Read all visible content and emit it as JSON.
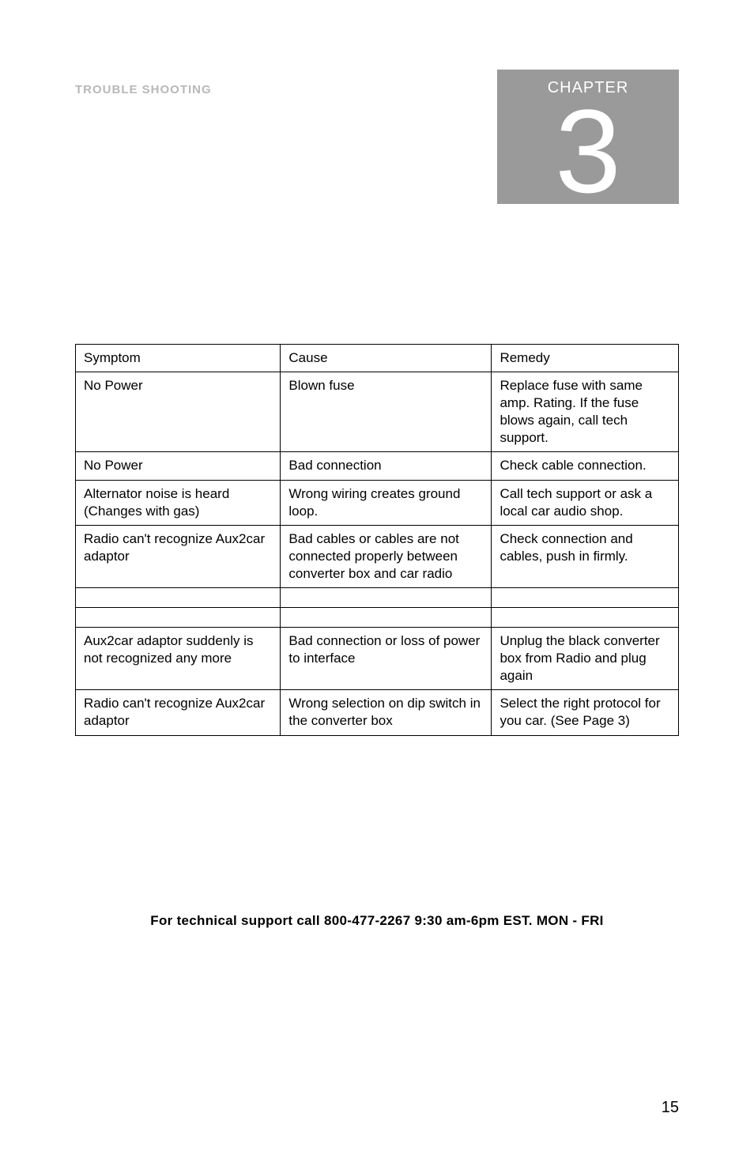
{
  "section_label": "TROUBLE SHOOTING",
  "chapter": {
    "label": "CHAPTER",
    "number": "3"
  },
  "table": {
    "columns": [
      "Symptom",
      "Cause",
      "Remedy"
    ],
    "rows": [
      [
        "No Power",
        "Blown fuse",
        "Replace fuse with same amp. Rating. If the fuse blows again, call tech support."
      ],
      [
        "No Power",
        "Bad connection",
        "Check cable connection."
      ],
      [
        "Alternator noise is heard (Changes with gas)",
        "Wrong wiring creates ground loop.",
        "Call tech support or ask a local car audio shop."
      ],
      [
        "Radio can't recognize Aux2car adaptor",
        "Bad cables or cables are not connected properly between converter box and car radio",
        "Check connection and cables, push in firmly."
      ],
      [
        "",
        "",
        ""
      ],
      [
        "",
        "",
        ""
      ],
      [
        "Aux2car adaptor suddenly is not recognized any more",
        "Bad connection or loss of power to interface",
        "Unplug the black converter box  from Radio and plug again"
      ],
      [
        "Radio can't recognize  Aux2car adaptor",
        "Wrong selection on dip switch in the converter box",
        "Select the right protocol for you car. (See Page 3)"
      ]
    ],
    "column_widths_pct": [
      34,
      35,
      31
    ],
    "border_color": "#000000",
    "border_width": 1.5,
    "cell_fontsize": 17,
    "background_color": "#ffffff"
  },
  "footer": "For technical support call 800-477-2267  9:30 am-6pm EST. MON - FRI",
  "page_number": "15",
  "colors": {
    "section_label": "#b8b8b8",
    "chapter_bg": "#9a9a9a",
    "chapter_text": "#ffffff",
    "body_text": "#000000",
    "background": "#ffffff"
  },
  "typography": {
    "font_family": "Arial, Helvetica, sans-serif",
    "section_label_fontsize": 15,
    "chapter_label_fontsize": 20,
    "chapter_number_fontsize": 150,
    "footer_fontsize": 17,
    "page_number_fontsize": 20
  }
}
